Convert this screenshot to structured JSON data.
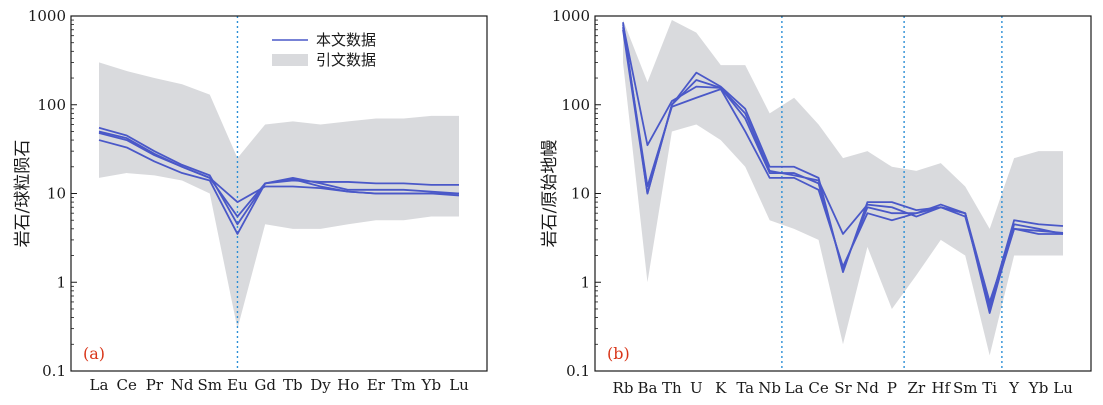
{
  "colors": {
    "sample_line": "#4a58c8",
    "envelope_fill": "#d9dadd",
    "divider": "#2b8fd6",
    "panel_label": "#d9361a",
    "frame": "#1a1a1a"
  },
  "chart_data": [
    {
      "type": "line",
      "panel_label": "(a)",
      "ylabel": "岩石/球粒陨石",
      "xlabel": "",
      "yscale": "log",
      "ylim": [
        0.1,
        1000
      ],
      "yticks": [
        "0.1",
        "1",
        "10",
        "100",
        "1000"
      ],
      "categories": [
        "La",
        "Ce",
        "Pr",
        "Nd",
        "Sm",
        "Eu",
        "Gd",
        "Tb",
        "Dy",
        "Ho",
        "Er",
        "Tm",
        "Yb",
        "Lu"
      ],
      "dividers_after_index": [
        5
      ],
      "legend": {
        "position": "top-right",
        "line_label": "本文数据",
        "area_label": "引文数据"
      },
      "envelope": {
        "upper": [
          300,
          240,
          200,
          170,
          130,
          25,
          60,
          65,
          60,
          65,
          70,
          70,
          75,
          75
        ],
        "lower": [
          15,
          17,
          16,
          14,
          10,
          0.3,
          4.5,
          4,
          4,
          4.5,
          5,
          5,
          5.5,
          5.5
        ]
      },
      "series": [
        {
          "values": [
            55,
            45,
            30,
            21,
            16,
            4.5,
            13,
            15,
            13,
            11,
            11,
            11,
            10.5,
            10
          ]
        },
        {
          "values": [
            50,
            42,
            28,
            20,
            15,
            8,
            12,
            12,
            11.5,
            10.5,
            10,
            10,
            10,
            10
          ]
        },
        {
          "values": [
            48,
            40,
            27,
            20,
            15,
            5.5,
            13,
            14,
            13.5,
            13.5,
            13,
            13,
            12.5,
            12.5
          ]
        },
        {
          "values": [
            40,
            33,
            23,
            17,
            14,
            3.5,
            13,
            14.5,
            12,
            10.5,
            10,
            10,
            10,
            9.5
          ]
        }
      ]
    },
    {
      "type": "line",
      "panel_label": "(b)",
      "ylabel": "岩石/原始地幔",
      "xlabel": "",
      "yscale": "log",
      "ylim": [
        0.1,
        1000
      ],
      "yticks": [
        "0.1",
        "1",
        "10",
        "100",
        "1000"
      ],
      "categories": [
        "Rb",
        "Ba",
        "Th",
        "U",
        "K",
        "Ta",
        "Nb",
        "La",
        "Ce",
        "Sr",
        "Nd",
        "P",
        "Zr",
        "Hf",
        "Sm",
        "Ti",
        "Y",
        "Yb",
        "Lu"
      ],
      "dividers_after_index": [
        6,
        11,
        15
      ],
      "envelope": {
        "upper": [
          900,
          180,
          900,
          650,
          280,
          280,
          80,
          120,
          60,
          25,
          30,
          20,
          18,
          22,
          12,
          4,
          25,
          30,
          30
        ],
        "lower": [
          300,
          1,
          50,
          60,
          40,
          20,
          5,
          4,
          3,
          0.2,
          2.5,
          0.5,
          1.2,
          3,
          2,
          0.15,
          2,
          2,
          2
        ]
      },
      "series": [
        {
          "values": [
            850,
            10,
            100,
            230,
            160,
            90,
            20,
            20,
            15,
            1.3,
            8,
            8,
            6.5,
            7,
            6,
            0.45,
            4.5,
            4,
            3.5
          ]
        },
        {
          "values": [
            800,
            35,
            110,
            160,
            155,
            80,
            18,
            16,
            14,
            3.5,
            7.5,
            7,
            5.5,
            7,
            5.5,
            0.55,
            5,
            4.5,
            4.3
          ]
        },
        {
          "values": [
            750,
            12,
            95,
            120,
            150,
            50,
            15,
            15,
            11,
            1.5,
            6,
            5,
            6,
            7.5,
            6,
            0.6,
            4,
            3.5,
            3.5
          ]
        },
        {
          "values": [
            700,
            10,
            100,
            190,
            155,
            70,
            17,
            17,
            13,
            1.4,
            7,
            6,
            6,
            7,
            6,
            0.5,
            4,
            3.8,
            3.6
          ]
        }
      ]
    }
  ]
}
